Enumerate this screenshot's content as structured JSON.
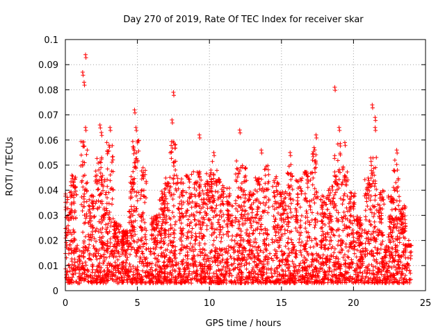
{
  "chart_data": {
    "type": "scatter",
    "title": "Day 270 of 2019, Rate Of TEC Index for receiver skar",
    "xlabel": "GPS time / hours",
    "ylabel": "ROTI / TECUs",
    "xlim": [
      0,
      25
    ],
    "ylim": [
      0,
      0.1
    ],
    "xticks": [
      "0",
      "5",
      "10",
      "15",
      "20",
      "25"
    ],
    "yticks": [
      "0",
      "0.01",
      "0.02",
      "0.03",
      "0.04",
      "0.05",
      "0.06",
      "0.07",
      "0.08",
      "0.09",
      "0.1"
    ],
    "grid": true,
    "marker": "plus",
    "color": "#ff0000",
    "x_coverage": [
      0,
      24
    ],
    "baseline_band": [
      0.003,
      0.018
    ],
    "notable_points": [
      {
        "x": 1.2,
        "y": 0.087
      },
      {
        "x": 1.3,
        "y": 0.083
      },
      {
        "x": 1.4,
        "y": 0.094
      },
      {
        "x": 1.4,
        "y": 0.065
      },
      {
        "x": 2.4,
        "y": 0.066
      },
      {
        "x": 2.5,
        "y": 0.063
      },
      {
        "x": 3.1,
        "y": 0.065
      },
      {
        "x": 4.8,
        "y": 0.072
      },
      {
        "x": 4.9,
        "y": 0.065
      },
      {
        "x": 7.4,
        "y": 0.068
      },
      {
        "x": 7.5,
        "y": 0.079
      },
      {
        "x": 7.6,
        "y": 0.058
      },
      {
        "x": 9.3,
        "y": 0.062
      },
      {
        "x": 10.3,
        "y": 0.055
      },
      {
        "x": 12.1,
        "y": 0.064
      },
      {
        "x": 13.6,
        "y": 0.056
      },
      {
        "x": 15.6,
        "y": 0.055
      },
      {
        "x": 17.4,
        "y": 0.062
      },
      {
        "x": 18.7,
        "y": 0.081
      },
      {
        "x": 19.0,
        "y": 0.065
      },
      {
        "x": 19.4,
        "y": 0.059
      },
      {
        "x": 21.3,
        "y": 0.074
      },
      {
        "x": 21.5,
        "y": 0.069
      },
      {
        "x": 21.5,
        "y": 0.065
      },
      {
        "x": 23.0,
        "y": 0.056
      }
    ],
    "clusters": [
      {
        "x": 0.2,
        "peak": 0.04
      },
      {
        "x": 0.6,
        "peak": 0.046
      },
      {
        "x": 1.3,
        "peak": 0.06
      },
      {
        "x": 1.8,
        "peak": 0.038
      },
      {
        "x": 2.3,
        "peak": 0.053
      },
      {
        "x": 2.7,
        "peak": 0.046
      },
      {
        "x": 3.1,
        "peak": 0.06
      },
      {
        "x": 3.6,
        "peak": 0.028
      },
      {
        "x": 4.1,
        "peak": 0.024
      },
      {
        "x": 4.6,
        "peak": 0.046
      },
      {
        "x": 4.9,
        "peak": 0.06
      },
      {
        "x": 5.4,
        "peak": 0.049
      },
      {
        "x": 6.2,
        "peak": 0.03
      },
      {
        "x": 6.7,
        "peak": 0.04
      },
      {
        "x": 7.1,
        "peak": 0.046
      },
      {
        "x": 7.5,
        "peak": 0.06
      },
      {
        "x": 8.0,
        "peak": 0.045
      },
      {
        "x": 8.6,
        "peak": 0.048
      },
      {
        "x": 9.1,
        "peak": 0.05
      },
      {
        "x": 9.5,
        "peak": 0.045
      },
      {
        "x": 10.0,
        "peak": 0.048
      },
      {
        "x": 10.3,
        "peak": 0.052
      },
      {
        "x": 10.8,
        "peak": 0.045
      },
      {
        "x": 11.4,
        "peak": 0.041
      },
      {
        "x": 12.0,
        "peak": 0.055
      },
      {
        "x": 12.4,
        "peak": 0.05
      },
      {
        "x": 12.9,
        "peak": 0.04
      },
      {
        "x": 13.4,
        "peak": 0.046
      },
      {
        "x": 13.9,
        "peak": 0.05
      },
      {
        "x": 14.6,
        "peak": 0.046
      },
      {
        "x": 15.1,
        "peak": 0.04
      },
      {
        "x": 15.6,
        "peak": 0.052
      },
      {
        "x": 16.2,
        "peak": 0.045
      },
      {
        "x": 16.8,
        "peak": 0.048
      },
      {
        "x": 17.3,
        "peak": 0.058
      },
      {
        "x": 17.9,
        "peak": 0.038
      },
      {
        "x": 18.4,
        "peak": 0.043
      },
      {
        "x": 18.9,
        "peak": 0.06
      },
      {
        "x": 19.4,
        "peak": 0.05
      },
      {
        "x": 19.9,
        "peak": 0.04
      },
      {
        "x": 20.4,
        "peak": 0.03
      },
      {
        "x": 21.0,
        "peak": 0.045
      },
      {
        "x": 21.4,
        "peak": 0.055
      },
      {
        "x": 21.9,
        "peak": 0.04
      },
      {
        "x": 22.6,
        "peak": 0.038
      },
      {
        "x": 23.0,
        "peak": 0.052
      },
      {
        "x": 23.4,
        "peak": 0.034
      },
      {
        "x": 23.8,
        "peak": 0.018
      }
    ]
  }
}
